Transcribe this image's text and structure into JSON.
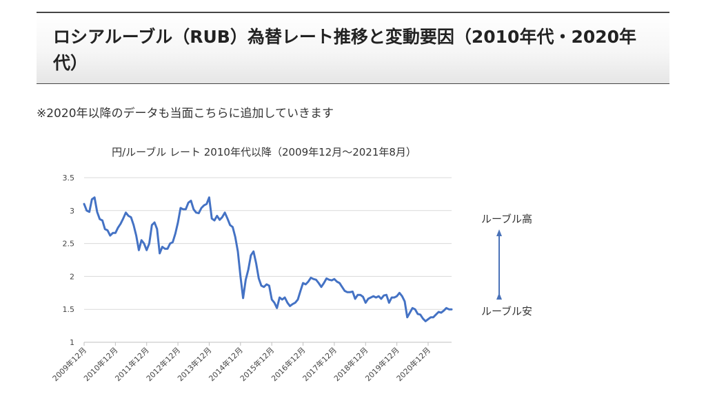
{
  "header": {
    "title": "ロシアルーブル（RUB）為替レート推移と変動要因（2010年代・2020年代）"
  },
  "note": "※2020年以降のデータも当面こちらに追加していきます",
  "chart_data": {
    "type": "line",
    "title": "円/ルーブル レート 2010年代以降（2009年12月～2021年8月）",
    "xlabel": "",
    "ylabel": "",
    "ylim": [
      1,
      3.5
    ],
    "yticks": [
      "1",
      "1.5",
      "2",
      "2.5",
      "3",
      "3.5"
    ],
    "xticks": [
      "2009年12月",
      "2010年12月",
      "2011年12月",
      "2012年12月",
      "2013年12月",
      "2014年12月",
      "2015年12月",
      "2016年12月",
      "2017年12月",
      "2018年12月",
      "2019年12月",
      "2020年12月"
    ],
    "grid": "horizontal",
    "legend": "none",
    "series": [
      {
        "color": "#4472c4",
        "x_start": "2009-12",
        "x_end": "2021-08",
        "values": [
          3.1,
          3.0,
          2.98,
          3.17,
          3.2,
          2.98,
          2.87,
          2.85,
          2.72,
          2.7,
          2.62,
          2.66,
          2.66,
          2.74,
          2.8,
          2.88,
          2.97,
          2.92,
          2.9,
          2.78,
          2.62,
          2.4,
          2.55,
          2.5,
          2.4,
          2.5,
          2.78,
          2.82,
          2.72,
          2.35,
          2.45,
          2.42,
          2.42,
          2.5,
          2.52,
          2.65,
          2.82,
          3.04,
          3.02,
          3.02,
          3.12,
          3.15,
          3.02,
          2.97,
          2.96,
          3.04,
          3.08,
          3.1,
          3.2,
          2.88,
          2.85,
          2.92,
          2.86,
          2.9,
          2.97,
          2.88,
          2.78,
          2.75,
          2.6,
          2.38,
          2.0,
          1.67,
          1.95,
          2.1,
          2.32,
          2.38,
          2.2,
          1.97,
          1.86,
          1.84,
          1.88,
          1.86,
          1.65,
          1.6,
          1.52,
          1.68,
          1.65,
          1.68,
          1.6,
          1.55,
          1.58,
          1.6,
          1.65,
          1.78,
          1.9,
          1.88,
          1.92,
          1.98,
          1.96,
          1.95,
          1.9,
          1.84,
          1.9,
          1.97,
          1.95,
          1.94,
          1.96,
          1.92,
          1.9,
          1.84,
          1.78,
          1.76,
          1.76,
          1.77,
          1.66,
          1.72,
          1.72,
          1.69,
          1.6,
          1.66,
          1.68,
          1.7,
          1.68,
          1.7,
          1.66,
          1.71,
          1.72,
          1.6,
          1.68,
          1.68,
          1.7,
          1.75,
          1.7,
          1.62,
          1.38,
          1.45,
          1.52,
          1.5,
          1.43,
          1.42,
          1.36,
          1.32,
          1.35,
          1.38,
          1.38,
          1.42,
          1.46,
          1.45,
          1.48,
          1.52,
          1.5,
          1.5
        ]
      }
    ]
  },
  "annotations": {
    "top_label": "ルーブル高",
    "bottom_label": "ルーブル安"
  }
}
